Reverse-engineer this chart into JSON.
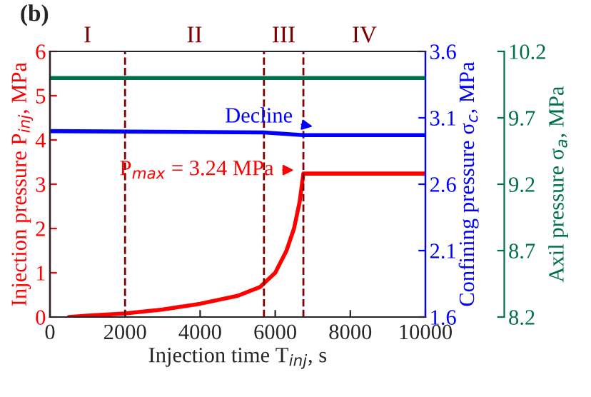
{
  "chart_data": {
    "type": "line",
    "title": "(b)",
    "xlabel": "Injection time T$_{inj}$, s",
    "ylabel": "Injection pressure P$_{inj}$, MPa",
    "y2label": "Confining pressure σ$_{c}$, MPa",
    "y3label": "Axil pressure σ$_{a}$, MPa",
    "xlim": [
      0,
      10000
    ],
    "xticks": [
      0,
      2000,
      4000,
      6000,
      8000,
      10000
    ],
    "ylim": [
      0,
      6
    ],
    "yticks": [
      0,
      1,
      2,
      3,
      4,
      5,
      6
    ],
    "y2lim": [
      1.6,
      3.6
    ],
    "y2ticks": [
      1.6,
      2.1,
      2.6,
      3.1,
      3.6
    ],
    "y3lim": [
      8.2,
      10.2
    ],
    "y3ticks": [
      8.2,
      8.7,
      9.2,
      9.7,
      10.2
    ],
    "series": [
      {
        "color": "#ff0000",
        "x": [
          500,
          1000,
          2000,
          3000,
          4000,
          5000,
          5600,
          6000,
          6300,
          6500,
          6650,
          6750,
          10000
        ],
        "values": [
          0.0,
          0.03,
          0.08,
          0.17,
          0.3,
          0.48,
          0.68,
          1.0,
          1.5,
          2.0,
          2.6,
          3.24,
          3.24
        ]
      },
      {
        "color": "#0000ff",
        "axis": "y2",
        "x": [
          0,
          5700,
          6750,
          10000
        ],
        "values": [
          3.0,
          2.99,
          2.97,
          2.97
        ]
      },
      {
        "color": "#00704a",
        "axis": "y3",
        "x": [
          0,
          10000
        ],
        "values": [
          10.0,
          10.0
        ]
      }
    ],
    "ref_lines": [
      {
        "axis": "x",
        "value": 2000,
        "color": "#800000",
        "line_style": "dashed"
      },
      {
        "axis": "x",
        "value": 5700,
        "color": "#800000",
        "line_style": "dashed"
      },
      {
        "axis": "x",
        "value": 6750,
        "color": "#800000",
        "line_style": "dashed"
      }
    ],
    "annotations": [
      "I",
      "II",
      "III",
      "IV",
      {
        "text": "Decline",
        "x": 7100,
        "y": 4.29
      },
      {
        "text": "P$_{max}$ = 3.24 MPa",
        "x": 6600,
        "y": 3.32
      }
    ],
    "grid": false,
    "legend": false,
    "marker": "none",
    "line_style": "solid"
  }
}
